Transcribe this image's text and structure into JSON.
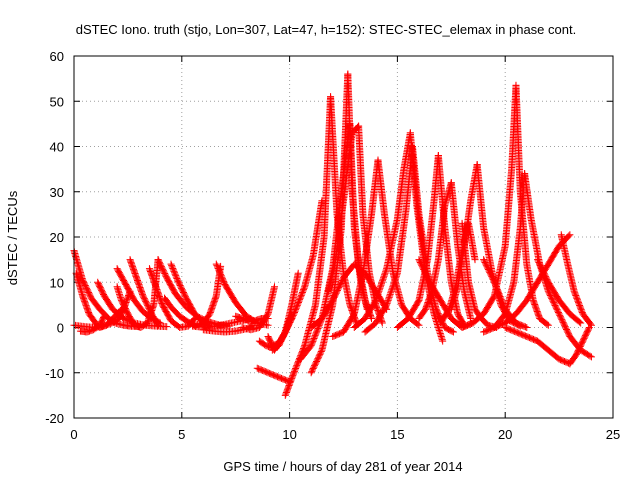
{
  "chart_data": {
    "type": "scatter",
    "title": "dSTEC Iono. truth (stjo, Lon=307, Lat=47, h=152): STEC-STEC_elemax in phase cont.",
    "xlabel": "GPS time / hours of day 281 of year 2014",
    "ylabel": "dSTEC  / TECUs",
    "xlim": [
      0,
      25
    ],
    "ylim": [
      -20,
      60
    ],
    "xticks": [
      0,
      5,
      10,
      15,
      20,
      25
    ],
    "yticks": [
      -20,
      -10,
      0,
      10,
      20,
      30,
      40,
      50,
      60
    ],
    "xtick_labels": [
      "0",
      "5",
      "10",
      "15",
      "20",
      "25"
    ],
    "ytick_labels": [
      "-20",
      "-10",
      "0",
      "10",
      "20",
      "30",
      "40",
      "50",
      "60"
    ],
    "grid": true,
    "marker": "+",
    "color": "#ff0000",
    "series": [
      {
        "x": [
          0.0,
          0.4,
          0.8,
          1.2,
          1.6,
          1.9,
          2.3,
          2.6,
          3.0
        ],
        "y": [
          17,
          10.5,
          6.5,
          4,
          2,
          1,
          0.5,
          0.3,
          0.2
        ]
      },
      {
        "x": [
          0.0,
          0.5,
          1.0,
          1.5,
          2.0,
          2.3,
          2.6
        ],
        "y": [
          0.5,
          0.2,
          0,
          0.5,
          1.5,
          4,
          8
        ]
      },
      {
        "x": [
          0.1,
          0.4,
          0.7,
          1.0,
          1.2,
          1.5,
          1.8,
          2.2
        ],
        "y": [
          12,
          7,
          3,
          1,
          0,
          0.5,
          2,
          4
        ]
      },
      {
        "x": [
          0.3,
          0.6,
          0.9,
          1.2,
          1.4
        ],
        "y": [
          -0.8,
          -1,
          -0.5,
          0.5,
          2.5
        ]
      },
      {
        "x": [
          1.1,
          1.4,
          1.8,
          2.3,
          2.8,
          3.3,
          3.8,
          4.3
        ],
        "y": [
          10,
          7,
          4,
          2,
          1,
          0.5,
          0.3,
          0.2
        ]
      },
      {
        "x": [
          2.0,
          2.4,
          2.8,
          3.2,
          3.6,
          4.0
        ],
        "y": [
          13,
          9.5,
          6,
          3.5,
          2,
          1
        ]
      },
      {
        "x": [
          2.6,
          2.9,
          3.2,
          3.6,
          3.9
        ],
        "y": [
          15,
          11,
          7,
          3,
          0.5
        ]
      },
      {
        "x": [
          2.0,
          2.2,
          2.5,
          2.8,
          3.1,
          3.4,
          3.7,
          3.9
        ],
        "y": [
          9,
          6,
          3,
          0.5,
          0,
          1,
          5,
          15
        ]
      },
      {
        "x": [
          3.9,
          4.3,
          4.7,
          5.2,
          5.7,
          6.2,
          6.7,
          7.2
        ],
        "y": [
          15,
          11,
          7.5,
          4.5,
          2.5,
          1.3,
          0.6,
          0.3
        ]
      },
      {
        "x": [
          3.5,
          3.8,
          4.1,
          4.5,
          4.9,
          5.3,
          5.6
        ],
        "y": [
          13,
          9,
          5,
          1.5,
          0,
          0.3,
          2
        ]
      },
      {
        "x": [
          4.5,
          4.8,
          5.2,
          5.6,
          6.0,
          6.3
        ],
        "y": [
          14,
          10.5,
          6.5,
          3,
          1,
          0.3
        ]
      },
      {
        "x": [
          4.2,
          4.5,
          4.9,
          5.3,
          5.6,
          6.0,
          6.3,
          6.6,
          6.8
        ],
        "y": [
          6.5,
          4.5,
          2.5,
          1.2,
          0.5,
          1,
          3,
          7,
          13.5
        ]
      },
      {
        "x": [
          5.5,
          5.9,
          6.3,
          6.8,
          7.3,
          7.8,
          8.2
        ],
        "y": [
          0.3,
          0.1,
          0.1,
          0.5,
          1,
          1.5,
          2
        ]
      },
      {
        "x": [
          6.6,
          7.0,
          7.5,
          8.0,
          8.5,
          9.0
        ],
        "y": [
          14,
          9.5,
          5.5,
          2.5,
          1,
          0.5
        ]
      },
      {
        "x": [
          6.0,
          6.5,
          7.0,
          7.5,
          8.0,
          8.3
        ],
        "y": [
          -0.5,
          -0.8,
          -1,
          -0.8,
          -0.3,
          0.5
        ]
      },
      {
        "x": [
          7.8,
          8.2,
          8.6,
          9.0,
          9.3
        ],
        "y": [
          0,
          -0.5,
          0,
          3,
          9
        ]
      },
      {
        "x": [
          7.5,
          7.8,
          8.1,
          8.4,
          8.7,
          9.0
        ],
        "y": [
          2.5,
          2,
          1.5,
          1.5,
          2,
          2
        ]
      },
      {
        "x": [
          8.6,
          8.9,
          9.2,
          9.5,
          9.8,
          10.1
        ],
        "y": [
          -3,
          -4,
          -4.5,
          -3.5,
          -1,
          3
        ]
      },
      {
        "x": [
          9.0,
          9.2,
          9.5,
          9.8,
          10.1
        ],
        "y": [
          -2,
          -4,
          -3.5,
          -1,
          2
        ]
      },
      {
        "x": [
          9.2,
          9.5,
          9.8,
          10.1,
          10.4
        ],
        "y": [
          -5,
          -4,
          -1,
          5,
          12
        ]
      },
      {
        "x": [
          8.5,
          9.0,
          9.5,
          10.0
        ],
        "y": [
          -9,
          -10,
          -11,
          -12
        ]
      },
      {
        "x": [
          9.8,
          10.2,
          10.7,
          11.2,
          11.6,
          11.9
        ],
        "y": [
          -15,
          -10,
          -4,
          5,
          20,
          51
        ]
      },
      {
        "x": [
          9.3,
          9.7,
          10.2,
          10.7,
          11.1,
          11.5
        ],
        "y": [
          -5,
          -2,
          3,
          9,
          16,
          28
        ]
      },
      {
        "x": [
          11.9,
          12.2,
          12.5,
          12.8,
          13.1
        ],
        "y": [
          51,
          25,
          12,
          5,
          1
        ]
      },
      {
        "x": [
          11.0,
          11.5,
          12.0,
          12.4,
          12.7
        ],
        "y": [
          -10,
          -5,
          5,
          22,
          56
        ]
      },
      {
        "x": [
          12.7,
          12.9,
          13.2,
          13.5,
          13.8
        ],
        "y": [
          56,
          30,
          14,
          6,
          2
        ]
      },
      {
        "x": [
          10.5,
          11.0,
          11.5,
          12.0,
          12.4,
          12.8
        ],
        "y": [
          -7,
          -4,
          2,
          13,
          30,
          45
        ]
      },
      {
        "x": [
          12.8,
          13.0,
          13.3,
          13.6
        ],
        "y": [
          45,
          22,
          10,
          4
        ]
      },
      {
        "x": [
          11.8,
          12.1,
          12.5,
          12.9,
          13.2
        ],
        "y": [
          8,
          14,
          28,
          43,
          44.5
        ]
      },
      {
        "x": [
          13.2,
          13.4,
          13.7,
          14.0,
          14.3
        ],
        "y": [
          44.5,
          25,
          12,
          5,
          1
        ]
      },
      {
        "x": [
          12.0,
          12.5,
          13.0,
          13.4,
          13.8,
          14.1
        ],
        "y": [
          -2,
          -1,
          3,
          12,
          25,
          37
        ]
      },
      {
        "x": [
          14.1,
          14.4,
          14.8,
          15.2,
          15.6,
          16.0
        ],
        "y": [
          37,
          25,
          12,
          5,
          2,
          0.5
        ]
      },
      {
        "x": [
          11.0,
          11.5,
          12.0,
          12.5,
          13.0,
          13.5,
          14.0,
          14.5
        ],
        "y": [
          0,
          2,
          6,
          11,
          14,
          12,
          8,
          4
        ]
      },
      {
        "x": [
          13.0,
          13.5,
          14.0,
          14.5,
          15.0,
          15.3,
          15.6
        ],
        "y": [
          0,
          2,
          6,
          13,
          24,
          35,
          43
        ]
      },
      {
        "x": [
          15.6,
          15.9,
          16.3,
          16.7,
          17.1
        ],
        "y": [
          43,
          27,
          12,
          3,
          -3
        ]
      },
      {
        "x": [
          13.5,
          14.0,
          14.5,
          15.0,
          15.4,
          15.7
        ],
        "y": [
          -1,
          1,
          5,
          12,
          26,
          40
        ]
      },
      {
        "x": [
          15.7,
          16.0,
          16.4,
          16.8,
          17.2,
          17.6
        ],
        "y": [
          40,
          25,
          12,
          4,
          0,
          -1
        ]
      },
      {
        "x": [
          15.0,
          15.5,
          16.0,
          16.4,
          16.7,
          16.9
        ],
        "y": [
          0,
          2,
          6,
          15,
          28,
          38
        ]
      },
      {
        "x": [
          16.9,
          17.2,
          17.5,
          17.8,
          18.1
        ],
        "y": [
          38,
          22,
          10,
          3,
          0.5
        ]
      },
      {
        "x": [
          16.0,
          16.3,
          16.6,
          16.9,
          17.2,
          17.5
        ],
        "y": [
          2,
          4,
          8,
          15,
          27,
          32
        ]
      },
      {
        "x": [
          17.5,
          17.8,
          18.1,
          18.4
        ],
        "y": [
          32,
          18,
          8,
          2
        ]
      },
      {
        "x": [
          17.0,
          17.4,
          17.7,
          18.0,
          18.3,
          18.6
        ],
        "y": [
          1,
          4,
          9,
          17,
          23,
          15
        ]
      },
      {
        "x": [
          18.0,
          18.3,
          18.6,
          18.9,
          19.2,
          19.6
        ],
        "y": [
          23,
          10,
          4,
          2,
          0.5,
          0
        ]
      },
      {
        "x": [
          17.5,
          17.8,
          18.1,
          18.4,
          18.7
        ],
        "y": [
          4,
          9,
          18,
          28,
          36
        ]
      },
      {
        "x": [
          18.7,
          19.0,
          19.4,
          19.8,
          20.2,
          20.7
        ],
        "y": [
          36,
          22,
          12,
          5,
          1.5,
          0.3
        ]
      },
      {
        "x": [
          16.0,
          16.5,
          17.0,
          17.5,
          18.0,
          18.5
        ],
        "y": [
          15,
          10,
          6,
          2,
          0,
          1
        ]
      },
      {
        "x": [
          18.0,
          18.5,
          19.0,
          19.5,
          20.0,
          20.3,
          20.5
        ],
        "y": [
          0,
          1,
          3,
          7,
          18,
          35,
          53.5
        ]
      },
      {
        "x": [
          20.5,
          20.7,
          21.0,
          21.3,
          21.6,
          22.0
        ],
        "y": [
          53.5,
          30,
          14,
          6,
          2,
          0.5
        ]
      },
      {
        "x": [
          19.0,
          19.5,
          20.0,
          20.4,
          20.7,
          20.9
        ],
        "y": [
          -1,
          0,
          3,
          10,
          22,
          34
        ]
      },
      {
        "x": [
          20.9,
          21.2,
          21.6,
          22.0,
          22.5,
          23.0,
          23.5,
          24.0
        ],
        "y": [
          34,
          24,
          14,
          8,
          3,
          -2,
          -5,
          -6.5
        ]
      },
      {
        "x": [
          19.0,
          19.5,
          20.0,
          20.5,
          21.0
        ],
        "y": [
          15,
          10,
          4,
          1,
          0
        ]
      },
      {
        "x": [
          19.5,
          20.0,
          20.5,
          21.0,
          21.5,
          22.0,
          22.5,
          23.0
        ],
        "y": [
          0,
          1,
          3,
          6,
          10,
          14,
          18,
          20.5
        ]
      },
      {
        "x": [
          22.6,
          22.9,
          23.2,
          23.6,
          24.0
        ],
        "y": [
          20.5,
          14,
          8,
          3,
          0.5
        ]
      },
      {
        "x": [
          20.0,
          20.5,
          21.0,
          21.5,
          22.0,
          22.5,
          23.0
        ],
        "y": [
          0,
          -1,
          -2,
          -3,
          -5,
          -7,
          -8
        ]
      },
      {
        "x": [
          23.0,
          23.3,
          23.6,
          23.9
        ],
        "y": [
          -8,
          -6,
          -3,
          0
        ]
      },
      {
        "x": [
          21.5,
          22.0,
          22.5,
          23.0,
          23.5
        ],
        "y": [
          15,
          10,
          6,
          3,
          1
        ]
      }
    ]
  }
}
